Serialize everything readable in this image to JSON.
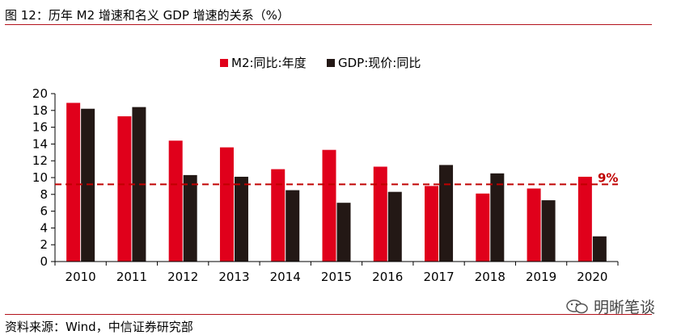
{
  "header": {
    "title": "图 12：历年 M2 增速和名义 GDP 增速的关系（%）"
  },
  "footer": {
    "source": "资料来源：Wind，中信证券研究部"
  },
  "watermark": {
    "text": "明晰笔谈",
    "icon": "wechat-icon"
  },
  "colors": {
    "rule": "#b3121b",
    "m2": "#e0001b",
    "gdp": "#231815",
    "refline": "#c00000"
  },
  "chart_data": {
    "type": "bar",
    "categories": [
      "2010",
      "2011",
      "2012",
      "2013",
      "2014",
      "2015",
      "2016",
      "2017",
      "2018",
      "2019",
      "2020"
    ],
    "series": [
      {
        "name": "M2:同比:年度",
        "values": [
          18.9,
          17.3,
          14.4,
          13.6,
          11.0,
          13.3,
          11.3,
          9.0,
          8.1,
          8.7,
          10.1
        ]
      },
      {
        "name": "GDP:现价:同比",
        "values": [
          18.2,
          18.4,
          10.3,
          10.1,
          8.5,
          7.0,
          8.3,
          11.5,
          10.5,
          7.3,
          3.0
        ]
      }
    ],
    "ylim": [
      0,
      20
    ],
    "yticks": [
      0,
      2,
      4,
      6,
      8,
      10,
      12,
      14,
      16,
      18,
      20
    ],
    "reference_line": {
      "value": 9.2,
      "label": "9%"
    },
    "legend": "top",
    "grid": false
  }
}
